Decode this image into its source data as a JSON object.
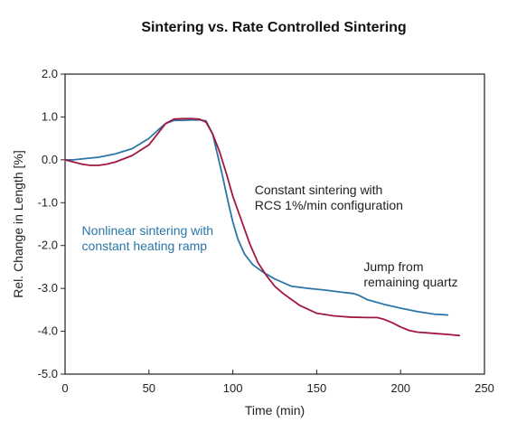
{
  "chart_data": {
    "type": "line",
    "title": "Sintering vs. Rate Controlled Sintering",
    "xlabel": "Time (min)",
    "ylabel": "Rel. Change in Length [%]",
    "xlim": [
      0,
      250
    ],
    "ylim": [
      -5.0,
      2.0
    ],
    "x_ticks": [
      0,
      50,
      100,
      150,
      200,
      250
    ],
    "x_tick_labels": [
      "0",
      "50",
      "100",
      "150",
      "200",
      "250"
    ],
    "y_ticks": [
      2.0,
      1.0,
      0.0,
      -1.0,
      -2.0,
      -3.0,
      -4.0,
      -5.0
    ],
    "y_tick_labels": [
      "2.0",
      "1.0",
      "0.0",
      "-1.0",
      "-2.0",
      "-3.0",
      "-4.0",
      "-5.0"
    ],
    "grid": false,
    "legend": "none",
    "series": [
      {
        "id": "nonlinear",
        "color": "#2a76a8",
        "x": [
          0,
          5,
          10,
          20,
          30,
          40,
          50,
          55,
          60,
          65,
          70,
          75,
          80,
          84,
          88,
          91,
          94,
          97,
          100,
          103,
          107,
          112,
          118,
          125,
          135,
          145,
          155,
          165,
          172,
          175,
          180,
          190,
          200,
          210,
          220,
          228
        ],
        "y": [
          0.0,
          0.0,
          0.02,
          0.06,
          0.14,
          0.26,
          0.5,
          0.68,
          0.85,
          0.92,
          0.92,
          0.93,
          0.93,
          0.91,
          0.6,
          0.1,
          -0.4,
          -0.95,
          -1.45,
          -1.85,
          -2.2,
          -2.45,
          -2.62,
          -2.78,
          -2.95,
          -3.0,
          -3.04,
          -3.09,
          -3.12,
          -3.16,
          -3.26,
          -3.37,
          -3.46,
          -3.54,
          -3.6,
          -3.62
        ]
      },
      {
        "id": "constant",
        "color": "#a3173e",
        "x": [
          0,
          5,
          10,
          15,
          20,
          25,
          30,
          40,
          50,
          55,
          60,
          65,
          70,
          75,
          80,
          84,
          88,
          92,
          96,
          100,
          105,
          110,
          115,
          120,
          125,
          130,
          140,
          150,
          160,
          170,
          180,
          186,
          190,
          195,
          200,
          205,
          210,
          220,
          230,
          235
        ],
        "y": [
          0.0,
          -0.05,
          -0.1,
          -0.13,
          -0.13,
          -0.1,
          -0.05,
          0.1,
          0.35,
          0.6,
          0.85,
          0.95,
          0.96,
          0.96,
          0.95,
          0.88,
          0.6,
          0.2,
          -0.3,
          -0.85,
          -1.4,
          -1.95,
          -2.4,
          -2.7,
          -2.95,
          -3.12,
          -3.4,
          -3.58,
          -3.64,
          -3.67,
          -3.68,
          -3.68,
          -3.72,
          -3.8,
          -3.9,
          -3.98,
          -4.02,
          -4.05,
          -4.08,
          -4.1
        ]
      }
    ],
    "annotations": [
      {
        "id": "nonlinear-note",
        "lines": [
          "Nonlinear sintering with",
          "constant heating ramp"
        ],
        "color": "#2a76a8",
        "x": 10,
        "y": -1.75
      },
      {
        "id": "constant-note",
        "lines": [
          "Constant sintering with",
          "RCS 1%/min configuration"
        ],
        "color": "#222222",
        "x": 113,
        "y": -0.8
      },
      {
        "id": "jump-note",
        "lines": [
          "Jump from",
          "remaining quartz"
        ],
        "color": "#222222",
        "x": 178,
        "y": -2.6
      }
    ]
  }
}
